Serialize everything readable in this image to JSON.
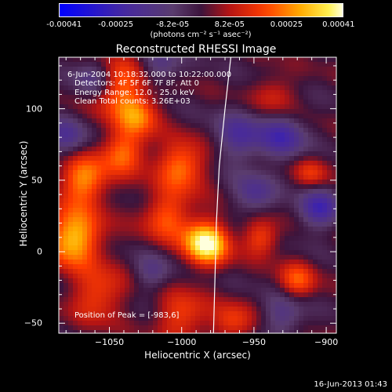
{
  "colorbar": {
    "ticks": [
      "-0.00041",
      "-0.00025",
      "-8.2e-05",
      "8.2e-05",
      "0.00025",
      "0.00041"
    ],
    "units": "(photons cm⁻² s⁻¹ asec⁻²)",
    "range": [
      -0.00041,
      0.00041
    ]
  },
  "chart_data": {
    "type": "heatmap",
    "title": "Reconstructed RHESSI Image",
    "xlabel": "Heliocentric X (arcsec)",
    "ylabel": "Heliocentric Y (arcsec)",
    "xlim": [
      -1085,
      -893
    ],
    "ylim": [
      -57,
      136
    ],
    "xticks": [
      "−1050",
      "−1000",
      "−950",
      "−900"
    ],
    "xtick_values": [
      -1050,
      -1000,
      -950,
      -900
    ],
    "yticks": [
      "−50",
      "0",
      "50",
      "100"
    ],
    "ytick_values": [
      -50,
      0,
      50,
      100
    ],
    "colormap": "rainbow/hot",
    "peak": [
      -983,
      6
    ],
    "limb_curve": [
      [
        -966,
        136
      ],
      [
        -970,
        100
      ],
      [
        -974,
        60
      ],
      [
        -976,
        20
      ],
      [
        -977,
        -20
      ],
      [
        -978,
        -57
      ]
    ],
    "blobs": [
      {
        "x": -983,
        "y": 6,
        "amp": 1.0,
        "r": 11
      },
      {
        "x": -1075,
        "y": 10,
        "amp": 0.8,
        "r": 14
      },
      {
        "x": -1068,
        "y": 50,
        "amp": 0.65,
        "r": 12
      },
      {
        "x": -1045,
        "y": 115,
        "amp": 0.6,
        "r": 14
      },
      {
        "x": -1040,
        "y": 70,
        "amp": 0.55,
        "r": 11
      },
      {
        "x": -1000,
        "y": 60,
        "amp": 0.6,
        "r": 12
      },
      {
        "x": -1010,
        "y": 25,
        "amp": 0.5,
        "r": 12
      },
      {
        "x": -1030,
        "y": 95,
        "amp": 0.5,
        "r": 10
      },
      {
        "x": -1058,
        "y": -30,
        "amp": 0.45,
        "r": 13
      },
      {
        "x": -1000,
        "y": -45,
        "amp": 0.45,
        "r": 12
      },
      {
        "x": -965,
        "y": -50,
        "amp": 0.4,
        "r": 10
      },
      {
        "x": -945,
        "y": 10,
        "amp": 0.45,
        "r": 9
      },
      {
        "x": -920,
        "y": -20,
        "amp": 0.45,
        "r": 9
      },
      {
        "x": -910,
        "y": 55,
        "amp": 0.35,
        "r": 8
      },
      {
        "x": -935,
        "y": 110,
        "amp": 0.3,
        "r": 10
      },
      {
        "x": -960,
        "y": 80,
        "amp": -0.45,
        "r": 12
      },
      {
        "x": -930,
        "y": 80,
        "amp": -0.5,
        "r": 11
      },
      {
        "x": -905,
        "y": 30,
        "amp": -0.55,
        "r": 10
      },
      {
        "x": -950,
        "y": 40,
        "amp": -0.4,
        "r": 10
      },
      {
        "x": -1060,
        "y": 120,
        "amp": -0.5,
        "r": 10
      },
      {
        "x": -1080,
        "y": 80,
        "amp": -0.4,
        "r": 10
      },
      {
        "x": -1020,
        "y": -15,
        "amp": -0.3,
        "r": 9
      },
      {
        "x": -930,
        "y": -45,
        "amp": -0.35,
        "r": 10
      },
      {
        "x": -1015,
        "y": 130,
        "amp": -0.35,
        "r": 9
      }
    ]
  },
  "annotations": {
    "time_range": "6-Jun-2004 10:18:32.000 to 10:22:00.000",
    "detectors": "Detectors: 4F 5F 6F 7F 8F, Att 0",
    "energy": "Energy Range: 12.0 - 25.0 keV",
    "clean": "Clean    Total counts: 3.26E+03",
    "peak": "Position of Peak = [-983,6]"
  },
  "timestamp": "16-Jun-2013 01:43"
}
